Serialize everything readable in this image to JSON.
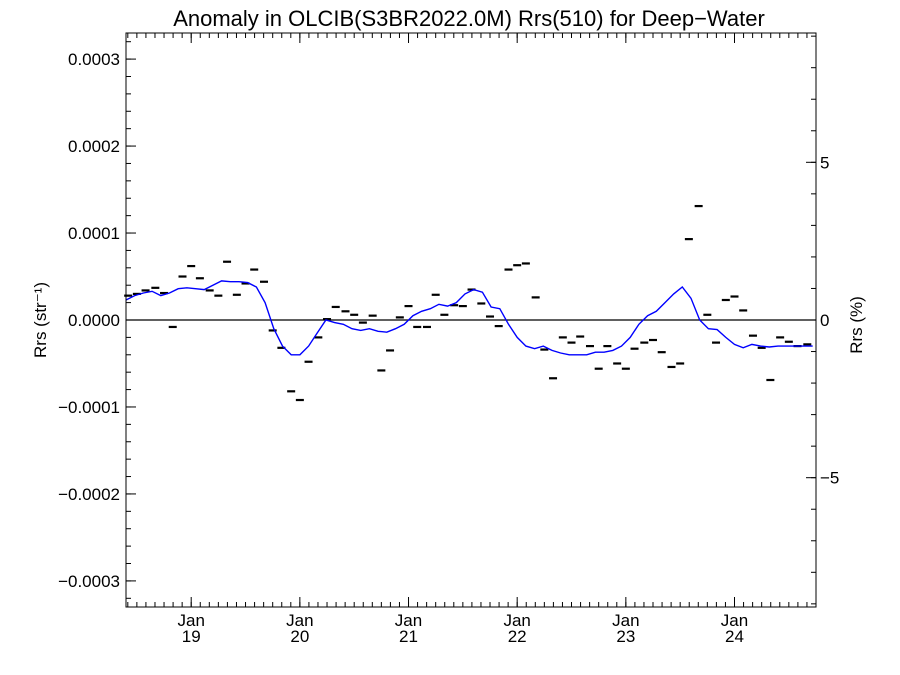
{
  "chart_data": {
    "type": "line",
    "title": "Anomaly in OLCIB(S3BR2022.0M) Rrs(510) for Deep−Water",
    "ylabel_left": "Rrs (str⁻¹)",
    "ylabel_right": "Rrs (%)",
    "ylim_left": [
      -0.00033,
      0.00033
    ],
    "ylim_right": [
      -9.1,
      9.1
    ],
    "xlim": [
      2018.4,
      2024.75
    ],
    "yticks_left": [
      {
        "v": 0.0003,
        "label": "0.0003"
      },
      {
        "v": 0.0002,
        "label": "0.0002"
      },
      {
        "v": 0.0001,
        "label": "0.0001"
      },
      {
        "v": 0.0,
        "label": "0.0000"
      },
      {
        "v": -0.0001,
        "label": "−0.0001"
      },
      {
        "v": -0.0002,
        "label": "−0.0002"
      },
      {
        "v": -0.0003,
        "label": "−0.0003"
      }
    ],
    "yticks_right": [
      {
        "v": 5,
        "label": "5"
      },
      {
        "v": 0,
        "label": "0"
      },
      {
        "v": -5,
        "label": "−5"
      }
    ],
    "xticks": [
      {
        "v": 2019.0,
        "label1": "Jan",
        "label2": "19"
      },
      {
        "v": 2020.0,
        "label1": "Jan",
        "label2": "20"
      },
      {
        "v": 2021.0,
        "label1": "Jan",
        "label2": "21"
      },
      {
        "v": 2022.0,
        "label1": "Jan",
        "label2": "22"
      },
      {
        "v": 2023.0,
        "label1": "Jan",
        "label2": "23"
      },
      {
        "v": 2024.0,
        "label1": "Jan",
        "label2": "24"
      }
    ],
    "zero_line": true,
    "grid": false,
    "series": [
      {
        "style": "dash-markers",
        "color": "#000000",
        "x": [
          2018.42,
          2018.5,
          2018.58,
          2018.67,
          2018.75,
          2018.83,
          2018.92,
          2019.0,
          2019.08,
          2019.17,
          2019.25,
          2019.33,
          2019.42,
          2019.5,
          2019.58,
          2019.67,
          2019.75,
          2019.83,
          2019.92,
          2020.0,
          2020.08,
          2020.17,
          2020.25,
          2020.33,
          2020.42,
          2020.5,
          2020.58,
          2020.67,
          2020.75,
          2020.83,
          2020.92,
          2021.0,
          2021.08,
          2021.17,
          2021.25,
          2021.33,
          2021.42,
          2021.5,
          2021.58,
          2021.67,
          2021.75,
          2021.83,
          2021.92,
          2022.0,
          2022.08,
          2022.17,
          2022.25,
          2022.33,
          2022.42,
          2022.5,
          2022.58,
          2022.67,
          2022.75,
          2022.83,
          2022.92,
          2023.0,
          2023.08,
          2023.17,
          2023.25,
          2023.33,
          2023.42,
          2023.5,
          2023.58,
          2023.67,
          2023.75,
          2023.83,
          2023.92,
          2024.0,
          2024.08,
          2024.17,
          2024.25,
          2024.33,
          2024.42,
          2024.5,
          2024.58,
          2024.67
        ],
        "y": [
          2.8e-05,
          3e-05,
          3.4e-05,
          3.7e-05,
          3.1e-05,
          -8e-06,
          5e-05,
          6.2e-05,
          4.8e-05,
          3.4e-05,
          2.8e-05,
          6.7e-05,
          2.9e-05,
          4.2e-05,
          5.8e-05,
          4.4e-05,
          -1.2e-05,
          -3.2e-05,
          -8.2e-05,
          -9.2e-05,
          -4.8e-05,
          -2e-05,
          1e-06,
          1.5e-05,
          1e-05,
          6e-06,
          -3e-06,
          5e-06,
          -5.8e-05,
          -3.5e-05,
          3e-06,
          1.6e-05,
          -8e-06,
          -8e-06,
          2.9e-05,
          6e-06,
          1.7e-05,
          1.6e-05,
          3.5e-05,
          1.9e-05,
          4e-06,
          -7e-06,
          5.8e-05,
          6.3e-05,
          6.5e-05,
          2.6e-05,
          -3.4e-05,
          -6.7e-05,
          -2e-05,
          -2.6e-05,
          -1.9e-05,
          -3e-05,
          -5.6e-05,
          -3e-05,
          -5e-05,
          -5.6e-05,
          -3.3e-05,
          -2.6e-05,
          -2.3e-05,
          -3.7e-05,
          -5.4e-05,
          -5e-05,
          9.3e-05,
          0.000131,
          6e-06,
          -2.6e-05,
          2.3e-05,
          2.7e-05,
          1.1e-05,
          -1.8e-05,
          -3.2e-05,
          -6.9e-05,
          -2e-05,
          -2.5e-05,
          -3e-05,
          -2.8e-05
        ]
      },
      {
        "style": "line",
        "color": "#0000ff",
        "x": [
          2018.4,
          2018.48,
          2018.56,
          2018.64,
          2018.72,
          2018.8,
          2018.88,
          2018.96,
          2019.04,
          2019.12,
          2019.2,
          2019.28,
          2019.36,
          2019.44,
          2019.52,
          2019.6,
          2019.68,
          2019.76,
          2019.84,
          2019.92,
          2020.0,
          2020.08,
          2020.16,
          2020.24,
          2020.32,
          2020.4,
          2020.48,
          2020.56,
          2020.64,
          2020.72,
          2020.8,
          2020.88,
          2020.96,
          2021.04,
          2021.12,
          2021.2,
          2021.28,
          2021.36,
          2021.44,
          2021.52,
          2021.6,
          2021.68,
          2021.76,
          2021.84,
          2021.92,
          2022.0,
          2022.08,
          2022.16,
          2022.24,
          2022.32,
          2022.4,
          2022.48,
          2022.56,
          2022.64,
          2022.72,
          2022.8,
          2022.88,
          2022.96,
          2023.04,
          2023.12,
          2023.2,
          2023.28,
          2023.36,
          2023.44,
          2023.52,
          2023.6,
          2023.68,
          2023.76,
          2023.84,
          2023.92,
          2024.0,
          2024.08,
          2024.16,
          2024.24,
          2024.32,
          2024.4,
          2024.48,
          2024.56,
          2024.64,
          2024.72
        ],
        "y": [
          2.3e-05,
          2.8e-05,
          3.1e-05,
          3.3e-05,
          2.8e-05,
          3.1e-05,
          3.6e-05,
          3.7e-05,
          3.6e-05,
          3.5e-05,
          4e-05,
          4.5e-05,
          4.4e-05,
          4.4e-05,
          4.3e-05,
          3.8e-05,
          2e-05,
          -1e-05,
          -3e-05,
          -4e-05,
          -4e-05,
          -3e-05,
          -1.5e-05,
          0.0,
          -3e-06,
          -5e-06,
          -1e-05,
          -1.2e-05,
          -1e-05,
          -1.3e-05,
          -1.4e-05,
          -1e-05,
          -5e-06,
          5e-06,
          1e-05,
          1.3e-05,
          1.8e-05,
          1.6e-05,
          2e-05,
          3e-05,
          3.5e-05,
          3.2e-05,
          1.5e-05,
          1.3e-05,
          -5e-06,
          -2e-05,
          -3e-05,
          -3.3e-05,
          -3e-05,
          -3.5e-05,
          -3.8e-05,
          -4e-05,
          -4e-05,
          -4e-05,
          -3.7e-05,
          -3.7e-05,
          -3.5e-05,
          -3e-05,
          -2e-05,
          -5e-06,
          5e-06,
          1e-05,
          2e-05,
          3e-05,
          3.8e-05,
          2.5e-05,
          0.0,
          -1e-05,
          -1.1e-05,
          -2e-05,
          -2.8e-05,
          -3.2e-05,
          -2.8e-05,
          -3e-05,
          -3.1e-05,
          -3e-05,
          -3e-05,
          -3e-05,
          -3e-05,
          -3e-05
        ]
      }
    ]
  }
}
